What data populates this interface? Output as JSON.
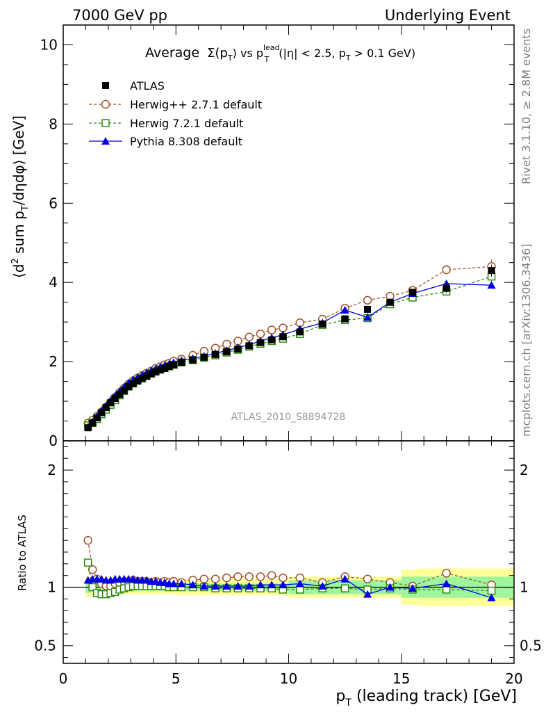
{
  "header": {
    "left": "7000 GeV pp",
    "right": "Underlying Event"
  },
  "side_labels": {
    "rivet": "Rivet 3.1.10, ≥ 2.8M events",
    "mcplots": "mcplots.cern.ch [arXiv:1306.3436]"
  },
  "watermark": "ATLAS_2010_S8894728",
  "colors": {
    "atlas": "#000000",
    "herwigpp": "#a0522d",
    "herwig7": "#2e8b10",
    "pythia": "#0000e0",
    "band_inner": "#9ef59e",
    "band_outer": "#ffff99"
  },
  "chart_data": [
    {
      "type": "scatter",
      "title_parts": {
        "t1": "Average",
        "t2": "Σ(p",
        "t3": "T",
        "t4": ") vs p",
        "t5": "lead",
        "t6": "T",
        "t7": "(|η| < 2.5, p",
        "t8": "T",
        "t9": " > 0.1 GeV)"
      },
      "ylabel_parts": {
        "a": "⟨d",
        "b": "2",
        "c": " sum p",
        "d": "T",
        "e": "/dηdφ⟩ [GeV]"
      },
      "xlim": [
        0,
        20
      ],
      "ylim": [
        0,
        10.5
      ],
      "y_ticks": [
        0,
        2,
        4,
        6,
        8,
        10
      ],
      "y_tick_labels": [
        "0",
        "2",
        "4",
        "6",
        "8",
        "10"
      ],
      "x": [
        1.1,
        1.3,
        1.5,
        1.7,
        1.9,
        2.1,
        2.3,
        2.5,
        2.7,
        2.9,
        3.1,
        3.3,
        3.5,
        3.7,
        3.9,
        4.1,
        4.3,
        4.5,
        4.7,
        4.9,
        5.25,
        5.75,
        6.25,
        6.75,
        7.25,
        7.75,
        8.25,
        8.75,
        9.25,
        9.75,
        10.5,
        11.5,
        12.5,
        13.5,
        14.5,
        15.5,
        17.0,
        19.0
      ],
      "series": [
        {
          "name": "ATLAS",
          "marker": "square-filled",
          "color": "#000000",
          "values": [
            0.33,
            0.45,
            0.58,
            0.71,
            0.84,
            0.96,
            1.07,
            1.17,
            1.27,
            1.37,
            1.44,
            1.51,
            1.57,
            1.63,
            1.69,
            1.74,
            1.79,
            1.83,
            1.88,
            1.92,
            1.98,
            2.04,
            2.11,
            2.18,
            2.25,
            2.32,
            2.4,
            2.48,
            2.55,
            2.63,
            2.75,
            2.95,
            3.08,
            3.32,
            3.5,
            3.75,
            3.85,
            4.3
          ],
          "errors": [
            0.02,
            0.02,
            0.02,
            0.02,
            0.02,
            0.02,
            0.02,
            0.02,
            0.02,
            0.02,
            0.02,
            0.02,
            0.02,
            0.02,
            0.02,
            0.02,
            0.02,
            0.02,
            0.02,
            0.02,
            0.02,
            0.02,
            0.02,
            0.02,
            0.02,
            0.02,
            0.03,
            0.03,
            0.03,
            0.03,
            0.04,
            0.05,
            0.05,
            0.07,
            0.08,
            0.1,
            0.12,
            0.15
          ]
        },
        {
          "name": "Herwig++ 2.7.1 default",
          "marker": "circle-open",
          "line": "dashed",
          "color": "#a0522d",
          "values": [
            0.45,
            0.52,
            0.62,
            0.73,
            0.85,
            0.97,
            1.1,
            1.22,
            1.33,
            1.43,
            1.52,
            1.59,
            1.65,
            1.71,
            1.76,
            1.83,
            1.87,
            1.92,
            1.96,
            2.01,
            2.06,
            2.16,
            2.26,
            2.34,
            2.44,
            2.52,
            2.62,
            2.7,
            2.8,
            2.85,
            2.98,
            3.07,
            3.35,
            3.55,
            3.65,
            3.8,
            4.32,
            4.4
          ],
          "errors": [
            0.02,
            0.02,
            0.02,
            0.02,
            0.02,
            0.02,
            0.02,
            0.02,
            0.02,
            0.02,
            0.02,
            0.02,
            0.02,
            0.02,
            0.02,
            0.02,
            0.02,
            0.02,
            0.02,
            0.02,
            0.03,
            0.03,
            0.03,
            0.03,
            0.03,
            0.04,
            0.04,
            0.04,
            0.04,
            0.05,
            0.05,
            0.06,
            0.06,
            0.07,
            0.08,
            0.1,
            0.12,
            0.18
          ]
        },
        {
          "name": "Herwig 7.2.1 default",
          "marker": "square-open",
          "line": "dashed",
          "color": "#2e8b10",
          "values": [
            0.39,
            0.45,
            0.55,
            0.67,
            0.79,
            0.91,
            1.03,
            1.15,
            1.26,
            1.37,
            1.45,
            1.52,
            1.58,
            1.64,
            1.7,
            1.75,
            1.8,
            1.84,
            1.88,
            1.92,
            1.98,
            2.04,
            2.1,
            2.16,
            2.23,
            2.3,
            2.38,
            2.45,
            2.52,
            2.58,
            2.7,
            2.93,
            3.05,
            3.1,
            3.45,
            3.62,
            3.77,
            4.15
          ],
          "errors": [
            0.02,
            0.02,
            0.02,
            0.02,
            0.02,
            0.02,
            0.02,
            0.02,
            0.02,
            0.02,
            0.02,
            0.02,
            0.02,
            0.02,
            0.02,
            0.02,
            0.02,
            0.02,
            0.02,
            0.02,
            0.03,
            0.03,
            0.03,
            0.03,
            0.03,
            0.04,
            0.04,
            0.04,
            0.04,
            0.05,
            0.05,
            0.06,
            0.06,
            0.07,
            0.08,
            0.12,
            0.1,
            0.12
          ]
        },
        {
          "name": "Pythia 8.308 default",
          "marker": "triangle-filled",
          "line": "solid",
          "color": "#0000e0",
          "values": [
            0.35,
            0.48,
            0.62,
            0.76,
            0.89,
            1.02,
            1.14,
            1.25,
            1.36,
            1.46,
            1.54,
            1.6,
            1.66,
            1.72,
            1.77,
            1.82,
            1.86,
            1.9,
            1.94,
            1.98,
            2.03,
            2.08,
            2.14,
            2.21,
            2.28,
            2.35,
            2.43,
            2.52,
            2.6,
            2.68,
            2.82,
            2.98,
            3.3,
            3.12,
            3.5,
            3.72,
            3.97,
            3.93
          ],
          "errors": [
            0.02,
            0.02,
            0.02,
            0.02,
            0.02,
            0.02,
            0.02,
            0.02,
            0.02,
            0.02,
            0.02,
            0.02,
            0.02,
            0.02,
            0.02,
            0.02,
            0.02,
            0.02,
            0.02,
            0.02,
            0.02,
            0.02,
            0.03,
            0.03,
            0.03,
            0.03,
            0.03,
            0.04,
            0.04,
            0.04,
            0.05,
            0.05,
            0.06,
            0.07,
            0.08,
            0.09,
            0.1,
            0.1
          ]
        }
      ],
      "legend_position": "top-left"
    },
    {
      "type": "scatter",
      "ylabel": "Ratio to ATLAS",
      "xlabel_parts": {
        "a": "p",
        "b": "T",
        "c": " (leading track) [GeV]"
      },
      "xlim": [
        0,
        20
      ],
      "ylim": [
        0.35,
        2.25
      ],
      "x_ticks": [
        0,
        5,
        10,
        15,
        20
      ],
      "x_tick_labels": [
        "0",
        "5",
        "10",
        "15",
        "20"
      ],
      "y_ticks": [
        0.5,
        1,
        2
      ],
      "y_tick_labels": [
        "0.5",
        "1",
        "2"
      ],
      "bands": [
        {
          "from": 1.0,
          "to": 1.2,
          "inner": 0.05,
          "outer": 0.09
        },
        {
          "from": 1.2,
          "to": 2.0,
          "inner": 0.04,
          "outer": 0.07
        },
        {
          "from": 2.0,
          "to": 5.0,
          "inner": 0.03,
          "outer": 0.06
        },
        {
          "from": 5.0,
          "to": 10.0,
          "inner": 0.03,
          "outer": 0.07
        },
        {
          "from": 10.0,
          "to": 15.0,
          "inner": 0.06,
          "outer": 0.09
        },
        {
          "from": 15.0,
          "to": 15.7,
          "inner": 0.09,
          "outer": 0.15
        },
        {
          "from": 15.7,
          "to": 20.0,
          "inner": 0.09,
          "outer": 0.16
        }
      ],
      "series": [
        {
          "name": "Herwig++ 2.7.1 default",
          "values": [
            1.4,
            1.15,
            1.07,
            1.03,
            1.01,
            1.01,
            1.03,
            1.04,
            1.05,
            1.04,
            1.06,
            1.05,
            1.05,
            1.05,
            1.04,
            1.05,
            1.04,
            1.05,
            1.04,
            1.05,
            1.04,
            1.06,
            1.07,
            1.07,
            1.08,
            1.09,
            1.09,
            1.09,
            1.1,
            1.08,
            1.08,
            1.04,
            1.09,
            1.07,
            1.04,
            1.01,
            1.12,
            1.02
          ]
        },
        {
          "name": "Herwig 7.2.1 default",
          "values": [
            1.21,
            1.0,
            0.95,
            0.94,
            0.94,
            0.95,
            0.96,
            0.98,
            0.99,
            1.0,
            1.01,
            1.01,
            1.01,
            1.01,
            1.01,
            1.01,
            1.01,
            1.01,
            1.0,
            1.0,
            1.0,
            1.0,
            1.0,
            0.99,
            0.99,
            0.99,
            0.99,
            0.99,
            0.99,
            0.98,
            0.98,
            0.99,
            0.99,
            0.98,
            0.99,
            0.98,
            0.98,
            0.97
          ]
        },
        {
          "name": "Pythia 8.308 default",
          "values": [
            1.06,
            1.07,
            1.07,
            1.07,
            1.06,
            1.06,
            1.07,
            1.07,
            1.07,
            1.07,
            1.07,
            1.06,
            1.06,
            1.06,
            1.05,
            1.05,
            1.04,
            1.04,
            1.03,
            1.03,
            1.03,
            1.02,
            1.01,
            1.01,
            1.01,
            1.01,
            1.01,
            1.02,
            1.02,
            1.02,
            1.03,
            1.01,
            1.07,
            0.94,
            1.0,
            0.99,
            1.03,
            0.91
          ]
        }
      ]
    }
  ]
}
